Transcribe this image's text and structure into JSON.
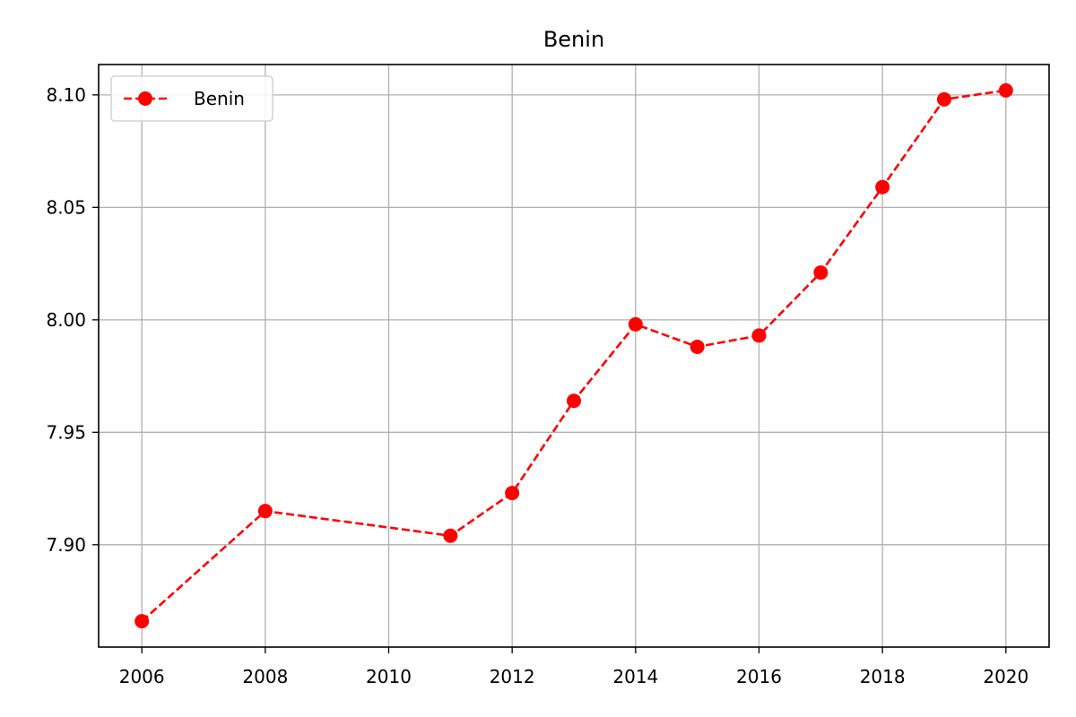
{
  "chart_data": {
    "type": "line",
    "title": "Benin",
    "xlabel": "",
    "ylabel": "",
    "x": [
      2006,
      2008,
      2011,
      2012,
      2013,
      2014,
      2015,
      2016,
      2017,
      2018,
      2019,
      2020
    ],
    "series": [
      {
        "name": "Benin",
        "values": [
          7.866,
          7.915,
          7.904,
          7.923,
          7.964,
          7.998,
          7.988,
          7.993,
          8.021,
          8.059,
          8.098,
          8.102
        ],
        "color": "#ff0000",
        "line_style": "dashed",
        "marker": "circle"
      }
    ],
    "xticks": [
      2006,
      2008,
      2010,
      2012,
      2014,
      2016,
      2018,
      2020
    ],
    "xtick_labels": [
      "2006",
      "2008",
      "2010",
      "2012",
      "2014",
      "2016",
      "2018",
      "2020"
    ],
    "yticks": [
      7.9,
      7.95,
      8.0,
      8.05,
      8.1
    ],
    "ytick_labels": [
      "7.90",
      "7.95",
      "8.00",
      "8.05",
      "8.10"
    ],
    "xlim": [
      2005.3,
      2020.7
    ],
    "ylim": [
      7.8545,
      8.1135
    ],
    "grid": true,
    "legend_position": "top-left"
  }
}
